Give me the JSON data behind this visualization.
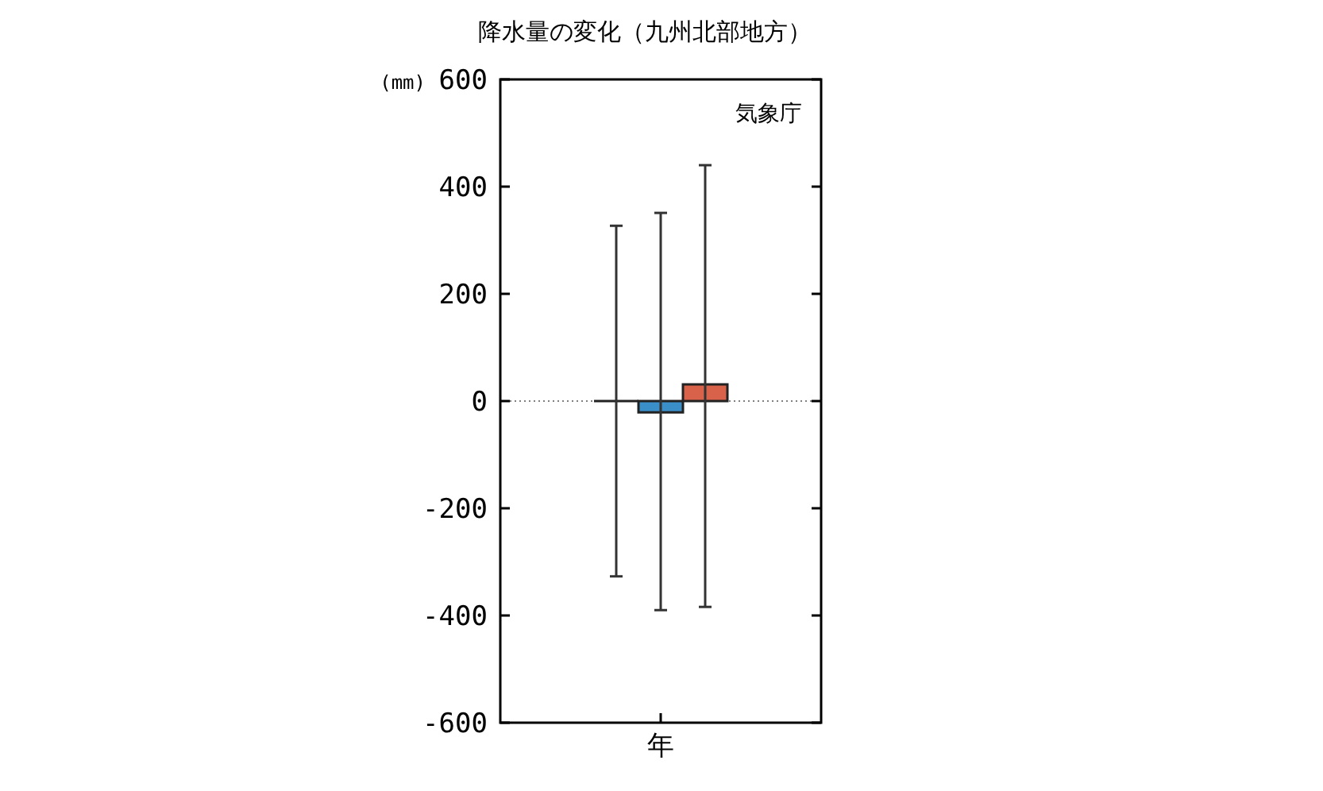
{
  "chart_data": {
    "type": "bar",
    "title": "降水量の変化（九州北部地方）",
    "ylabel": "(mm)",
    "annotations": [
      "気象庁"
    ],
    "categories": [
      "年"
    ],
    "series": [
      {
        "color": "#222222",
        "values": [
          0
        ],
        "errors": [
          [
            -327,
            327
          ]
        ]
      },
      {
        "color": "#3a8fc8",
        "values": [
          -21
        ],
        "errors": [
          [
            -390,
            351
          ]
        ]
      },
      {
        "color": "#d9634a",
        "values": [
          31
        ],
        "errors": [
          [
            -384,
            440
          ]
        ]
      }
    ],
    "ylim": [
      -600,
      600
    ],
    "yticks": [
      -600,
      -400,
      -200,
      0,
      200,
      400,
      600
    ],
    "ref_lines": [
      {
        "axis": "y",
        "value": 0,
        "color": "#808080",
        "line_style": "dotted"
      }
    ],
    "grid": false
  }
}
